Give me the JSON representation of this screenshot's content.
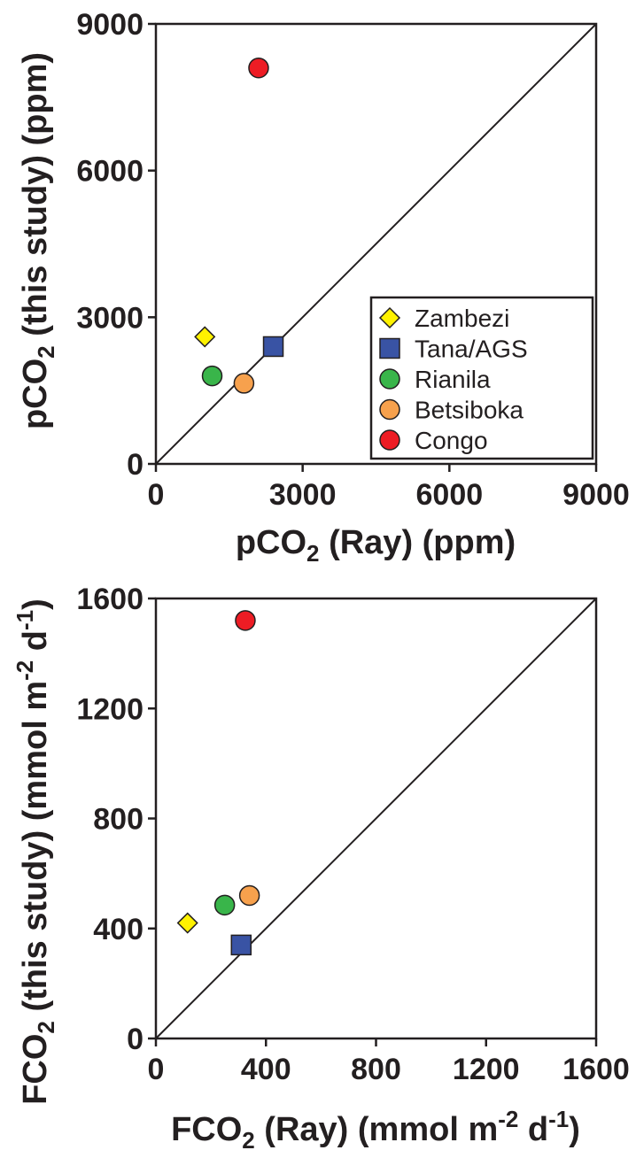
{
  "chart_data": [
    {
      "type": "scatter",
      "xlabel": {
        "pre": "pCO",
        "sub": "2",
        "post": " (Ray) (ppm)"
      },
      "ylabel": {
        "pre": "pCO",
        "sub": "2",
        "post": " (this study) (ppm)"
      },
      "xlim": [
        0,
        9000
      ],
      "ylim": [
        0,
        9000
      ],
      "xticks": [
        "0",
        "3000",
        "6000",
        "9000"
      ],
      "yticks": [
        "0",
        "3000",
        "6000",
        "9000"
      ],
      "identity_line": true,
      "legend_position": "bottom-right",
      "series": [
        {
          "name": "Zambezi",
          "marker": "diamond",
          "color": "#fff200",
          "x": [
            1000
          ],
          "y": [
            2600
          ]
        },
        {
          "name": "Tana/AGS",
          "marker": "square",
          "color": "#3953a4",
          "x": [
            2400
          ],
          "y": [
            2400
          ]
        },
        {
          "name": "Rianila",
          "marker": "circle",
          "color": "#39b54a",
          "x": [
            1150
          ],
          "y": [
            1800
          ]
        },
        {
          "name": "Betsiboka",
          "marker": "circle",
          "color": "#f7a14d",
          "x": [
            1800
          ],
          "y": [
            1650
          ]
        },
        {
          "name": "Congo",
          "marker": "circle",
          "color": "#ed1c24",
          "x": [
            2100
          ],
          "y": [
            8100
          ]
        }
      ]
    },
    {
      "type": "scatter",
      "xlabel": {
        "pre": "FCO",
        "sub": "2",
        "post": " (Ray) (mmol m",
        "sup1": "-2",
        "mid": " d",
        "sup2": "-1",
        "end": ")"
      },
      "ylabel": {
        "pre": "FCO",
        "sub": "2",
        "post": " (this study) (mmol m",
        "sup1": "-2",
        "mid": " d",
        "sup2": "-1",
        "end": ")"
      },
      "xlim": [
        0,
        1600
      ],
      "ylim": [
        0,
        1600
      ],
      "xticks": [
        "0",
        "400",
        "800",
        "1200",
        "1600"
      ],
      "yticks": [
        "0",
        "400",
        "800",
        "1200",
        "1600"
      ],
      "identity_line": true,
      "series": [
        {
          "name": "Zambezi",
          "marker": "diamond",
          "color": "#fff200",
          "x": [
            115
          ],
          "y": [
            420
          ]
        },
        {
          "name": "Tana/AGS",
          "marker": "square",
          "color": "#3953a4",
          "x": [
            310
          ],
          "y": [
            340
          ]
        },
        {
          "name": "Rianila",
          "marker": "circle",
          "color": "#39b54a",
          "x": [
            250
          ],
          "y": [
            485
          ]
        },
        {
          "name": "Betsiboka",
          "marker": "circle",
          "color": "#f7a14d",
          "x": [
            340
          ],
          "y": [
            520
          ]
        },
        {
          "name": "Congo",
          "marker": "circle",
          "color": "#ed1c24",
          "x": [
            325
          ],
          "y": [
            1520
          ]
        }
      ]
    }
  ]
}
